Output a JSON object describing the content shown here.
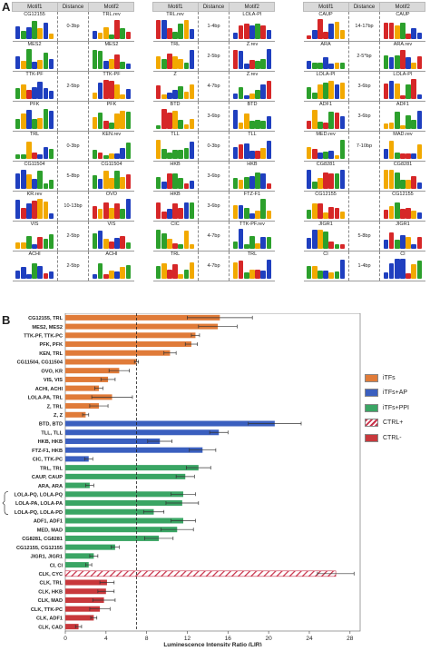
{
  "panel_a": {
    "label": "A",
    "headers": {
      "motif1": "Motif1",
      "distance": "Distance",
      "motif2": "Motif2"
    },
    "tables": [
      {
        "rows": [
          {
            "m1": "CG12155",
            "d": "0-3bp",
            "m2": "TRL.rev"
          },
          {
            "m1": "MES2",
            "d": "",
            "m2": "MES2"
          },
          {
            "m1": "TTK-PF",
            "d": "2-5bp",
            "m2": "TTK-PF"
          },
          {
            "m1": "PFK",
            "d": "",
            "m2": "PFK"
          },
          {
            "m1": "TRL",
            "d": "0-3bp",
            "m2": "KEN.rev"
          },
          {
            "m1": "CG11504",
            "d": "5-8bp",
            "m2": "CG11504"
          },
          {
            "m1": "KR.rev",
            "d": "10-13bp",
            "m2": "OVO"
          },
          {
            "m1": "VIS",
            "d": "2-5bp",
            "m2": "VIS"
          },
          {
            "m1": "ACHI",
            "d": "2-5bp",
            "m2": "ACHI"
          }
        ]
      },
      {
        "rows": [
          {
            "m1": "TRL.rev",
            "d": "1-4bp",
            "m2": "LOLA-PI"
          },
          {
            "m1": "TRL",
            "d": "2-5bp",
            "m2": "Z.rev"
          },
          {
            "m1": "Z",
            "d": "4-7bp",
            "m2": "Z.rev"
          },
          {
            "m1": "BTD",
            "d": "3-6bp",
            "m2": "BTD"
          },
          {
            "m1": "TLL",
            "d": "0-3bp",
            "m2": "TLL"
          },
          {
            "m1": "HKB",
            "d": "3-6bp",
            "m2": "HKB"
          },
          {
            "m1": "HKB",
            "d": "3-6bp",
            "m2": "FTZ-F1"
          },
          {
            "m1": "CIC",
            "d": "4-7bp",
            "m2": "TTK-PF.rev"
          },
          {
            "m1": "TRL",
            "d": "4-7bp",
            "m2": "TRL"
          }
        ]
      },
      {
        "rows": [
          {
            "m1": "CAUP",
            "d": "14-17bp",
            "m2": "CAUP"
          },
          {
            "m1": "ARA",
            "d": "2-5*bp",
            "m2": "ARA.rev"
          },
          {
            "m1": "LOLA-PI",
            "d": "3-6bp",
            "m2": "LOLA-PI"
          },
          {
            "m1": "ADF1",
            "d": "3-6bp",
            "m2": "ADF1"
          },
          {
            "m1": "MED.rev",
            "d": "7-10bp",
            "m2": "MAD.rev"
          },
          {
            "m1": "CG8281",
            "d": "",
            "m2": "CG8281"
          },
          {
            "m1": "CG12155",
            "d": "",
            "m2": "CG12155"
          },
          {
            "m1": "JIGR1",
            "d": "5-8bp",
            "m2": "JIGR1"
          },
          {
            "m1": "CI",
            "d": "1-4bp",
            "m2": "CI"
          }
        ]
      }
    ],
    "logo_colors": {
      "A": "#2ca02c",
      "C": "#1f3fbf",
      "G": "#f2a900",
      "T": "#d62728"
    }
  },
  "chart_data": {
    "type": "bar",
    "panel_label": "B",
    "orientation": "horizontal",
    "xlabel": "Luminescence Intensity Ratio (LIR)",
    "ylabel": "",
    "xlim": [
      0,
      29
    ],
    "xticks": [
      0,
      4,
      8,
      12,
      16,
      20,
      24,
      28
    ],
    "reference_line": 7,
    "legend_position": "right",
    "groups": [
      {
        "name": "iTFs",
        "color": "#e07b39"
      },
      {
        "name": "iTFs+AP",
        "color": "#3a5fbf"
      },
      {
        "name": "iTFs+PPI",
        "color": "#3aa564"
      },
      {
        "name": "CTRL+",
        "color": "#c8324a",
        "hatched": true
      },
      {
        "name": "CTRL-",
        "color": "#c8383c"
      }
    ],
    "bars": [
      {
        "label": "CG12155, TRL",
        "value": 15.2,
        "error": 3.2,
        "group": "iTFs"
      },
      {
        "label": "MES2, MES2",
        "value": 15.0,
        "error": 1.9,
        "group": "iTFs"
      },
      {
        "label": "TTK-PF, TTK-PC",
        "value": 12.8,
        "error": 0.4,
        "group": "iTFs"
      },
      {
        "label": "PFK, PFK",
        "value": 12.4,
        "error": 0.6,
        "group": "iTFs"
      },
      {
        "label": "KEN, TRL",
        "value": 10.3,
        "error": 0.6,
        "group": "iTFs"
      },
      {
        "label": "CG11504, CG11504",
        "value": 7.0,
        "error": 0.2,
        "group": "iTFs"
      },
      {
        "label": "OVO, KR",
        "value": 5.3,
        "error": 1.0,
        "group": "iTFs"
      },
      {
        "label": "VIS, VIS",
        "value": 4.2,
        "error": 0.7,
        "group": "iTFs"
      },
      {
        "label": "ACHI, ACHI",
        "value": 3.3,
        "error": 0.4,
        "group": "iTFs"
      },
      {
        "label": "LOLA-PA, TRL",
        "value": 4.6,
        "error": 2.0,
        "group": "iTFs"
      },
      {
        "label": "Z, TRL",
        "value": 3.3,
        "error": 0.9,
        "group": "iTFs"
      },
      {
        "label": "Z, Z",
        "value": 2.0,
        "error": 0.3,
        "group": "iTFs"
      },
      {
        "label": "BTD, BTD",
        "value": 20.6,
        "error": 2.6,
        "group": "iTFs+AP"
      },
      {
        "label": "TLL, TLL",
        "value": 15.1,
        "error": 0.9,
        "group": "iTFs+AP"
      },
      {
        "label": "HKB, HKB",
        "value": 9.3,
        "error": 1.2,
        "group": "iTFs+AP"
      },
      {
        "label": "FTZ-F1, HKB",
        "value": 13.5,
        "error": 1.3,
        "group": "iTFs+AP"
      },
      {
        "label": "CIC, TTK-PC",
        "value": 2.3,
        "error": 0.4,
        "group": "iTFs+AP"
      },
      {
        "label": "TRL, TRL",
        "value": 13.1,
        "error": 1.2,
        "group": "iTFs+PPI"
      },
      {
        "label": "CAUP, CAUP",
        "value": 11.8,
        "error": 0.9,
        "group": "iTFs+PPI"
      },
      {
        "label": "ARA, ARA",
        "value": 2.4,
        "error": 0.4,
        "group": "iTFs+PPI"
      },
      {
        "label": "LOLA-PQ, LOLA-PQ",
        "value": 11.6,
        "error": 1.2,
        "group": "iTFs+PPI"
      },
      {
        "label": "LOLA-PA, LOLA-PA",
        "value": 11.5,
        "error": 1.6,
        "group": "iTFs+PPI"
      },
      {
        "label": "LOLA-PQ, LOLA-PD",
        "value": 8.7,
        "error": 1.0,
        "group": "iTFs+PPI"
      },
      {
        "label": "ADF1, ADF1",
        "value": 11.6,
        "error": 1.2,
        "group": "iTFs+PPI"
      },
      {
        "label": "MED, MAD",
        "value": 11.0,
        "error": 1.6,
        "group": "iTFs+PPI"
      },
      {
        "label": "CG8281, CG8281",
        "value": 9.2,
        "error": 1.4,
        "group": "iTFs+PPI"
      },
      {
        "label": "CG12155, CG12155",
        "value": 4.9,
        "error": 0.4,
        "group": "iTFs+PPI"
      },
      {
        "label": "JIGR1, JIGR1",
        "value": 2.8,
        "error": 0.4,
        "group": "iTFs+PPI"
      },
      {
        "label": "CI, CI",
        "value": 2.3,
        "error": 0.3,
        "group": "iTFs+PPI"
      },
      {
        "label": "CLK, CYC",
        "value": 26.6,
        "error": 1.8,
        "group": "CTRL+"
      },
      {
        "label": "CLK, TRL",
        "value": 4.1,
        "error": 0.7,
        "group": "CTRL-"
      },
      {
        "label": "CLK, HKB",
        "value": 4.0,
        "error": 0.8,
        "group": "CTRL-"
      },
      {
        "label": "CLK, MAD",
        "value": 3.8,
        "error": 1.1,
        "group": "CTRL-"
      },
      {
        "label": "CLK, TTK-PC",
        "value": 3.4,
        "error": 1.0,
        "group": "CTRL-"
      },
      {
        "label": "CLK, ADF1",
        "value": 2.8,
        "error": 0.3,
        "group": "CTRL-"
      },
      {
        "label": "CLK, CAD",
        "value": 1.3,
        "error": 0.3,
        "group": "CTRL-"
      }
    ]
  }
}
